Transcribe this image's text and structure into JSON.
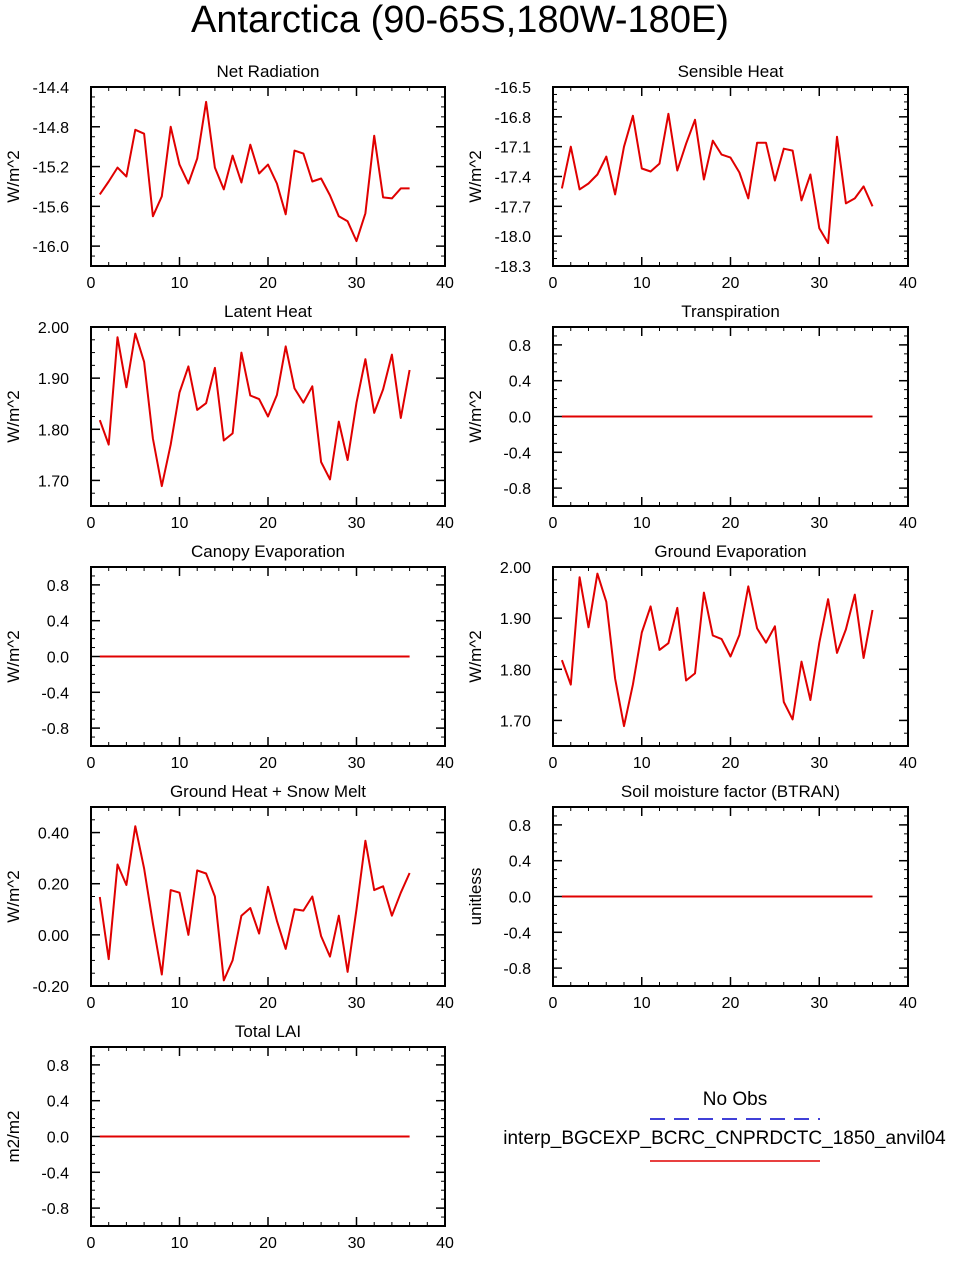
{
  "title": "Antarctica (90-65S,180W-180E)",
  "colors": {
    "case_line": "#e00000",
    "obs_line": "#0000cc",
    "axis": "#000000"
  },
  "legend": {
    "obs_label": "No Obs",
    "case_label": "interp_BGCEXP_BCRC_CNPRDCTC_1850_anvil04"
  },
  "chart_data": [
    {
      "type": "line",
      "title": "Net Radiation",
      "ylabel": "W/m^2",
      "xlim": [
        0,
        40
      ],
      "ylim": [
        -16.2,
        -14.4
      ],
      "xticks": [
        0,
        10,
        20,
        30,
        40
      ],
      "xtick_labels": [
        "0",
        "10",
        "20",
        "30",
        "40"
      ],
      "yticks": [
        -14.4,
        -14.8,
        -15.2,
        -15.6,
        -16.0
      ],
      "ytick_labels": [
        "-14.4",
        "-14.8",
        "-15.2",
        "-15.6",
        "-16.0"
      ],
      "x": [
        1,
        2,
        3,
        4,
        5,
        6,
        7,
        8,
        9,
        10,
        11,
        12,
        13,
        14,
        15,
        16,
        17,
        18,
        19,
        20,
        21,
        22,
        23,
        24,
        25,
        26,
        27,
        28,
        29,
        30,
        31,
        32,
        33,
        34,
        35,
        36
      ],
      "series": [
        {
          "name": "interp_BGCEXP_BCRC_CNPRDCTC_1850_anvil04",
          "values": [
            -15.48,
            -15.35,
            -15.21,
            -15.3,
            -14.83,
            -14.87,
            -15.7,
            -15.5,
            -14.8,
            -15.18,
            -15.37,
            -15.12,
            -14.55,
            -15.21,
            -15.43,
            -15.09,
            -15.36,
            -14.98,
            -15.27,
            -15.18,
            -15.37,
            -15.68,
            -15.04,
            -15.07,
            -15.35,
            -15.32,
            -15.49,
            -15.7,
            -15.75,
            -15.95,
            -15.67,
            -14.89,
            -15.51,
            -15.52,
            -15.42,
            -15.42
          ]
        }
      ]
    },
    {
      "type": "line",
      "title": "Sensible Heat",
      "ylabel": "W/m^2",
      "xlim": [
        0,
        40
      ],
      "ylim": [
        -18.3,
        -16.5
      ],
      "xticks": [
        0,
        10,
        20,
        30,
        40
      ],
      "xtick_labels": [
        "0",
        "10",
        "20",
        "30",
        "40"
      ],
      "yticks": [
        -16.5,
        -16.8,
        -17.1,
        -17.4,
        -17.7,
        -18.0,
        -18.3
      ],
      "ytick_labels": [
        "-16.5",
        "-16.8",
        "-17.1",
        "-17.4",
        "-17.7",
        "-18.0",
        "-18.3"
      ],
      "x": [
        1,
        2,
        3,
        4,
        5,
        6,
        7,
        8,
        9,
        10,
        11,
        12,
        13,
        14,
        15,
        16,
        17,
        18,
        19,
        20,
        21,
        22,
        23,
        24,
        25,
        26,
        27,
        28,
        29,
        30,
        31,
        32,
        33,
        34,
        35,
        36
      ],
      "series": [
        {
          "name": "interp_BGCEXP_BCRC_CNPRDCTC_1850_anvil04",
          "values": [
            -17.52,
            -17.1,
            -17.53,
            -17.47,
            -17.38,
            -17.2,
            -17.58,
            -17.1,
            -16.79,
            -17.32,
            -17.35,
            -17.27,
            -16.77,
            -17.34,
            -17.07,
            -16.83,
            -17.43,
            -17.04,
            -17.18,
            -17.21,
            -17.36,
            -17.62,
            -17.06,
            -17.06,
            -17.44,
            -17.12,
            -17.14,
            -17.64,
            -17.38,
            -17.92,
            -18.07,
            -17.0,
            -17.67,
            -17.62,
            -17.5,
            -17.7
          ]
        }
      ]
    },
    {
      "type": "line",
      "title": "Latent Heat",
      "ylabel": "W/m^2",
      "xlim": [
        0,
        40
      ],
      "ylim": [
        1.65,
        2.0
      ],
      "xticks": [
        0,
        10,
        20,
        30,
        40
      ],
      "xtick_labels": [
        "0",
        "10",
        "20",
        "30",
        "40"
      ],
      "yticks": [
        2.0,
        1.9,
        1.8,
        1.7
      ],
      "ytick_labels": [
        "2.00",
        "1.90",
        "1.80",
        "1.70"
      ],
      "x": [
        1,
        2,
        3,
        4,
        5,
        6,
        7,
        8,
        9,
        10,
        11,
        12,
        13,
        14,
        15,
        16,
        17,
        18,
        19,
        20,
        21,
        22,
        23,
        24,
        25,
        26,
        27,
        28,
        29,
        30,
        31,
        32,
        33,
        34,
        35,
        36
      ],
      "series": [
        {
          "name": "interp_BGCEXP_BCRC_CNPRDCTC_1850_anvil04",
          "values": [
            1.818,
            1.77,
            1.98,
            1.882,
            1.987,
            1.932,
            1.782,
            1.689,
            1.77,
            1.872,
            1.923,
            1.838,
            1.851,
            1.92,
            1.778,
            1.792,
            1.95,
            1.866,
            1.859,
            1.825,
            1.867,
            1.962,
            1.88,
            1.852,
            1.884,
            1.736,
            1.702,
            1.815,
            1.74,
            1.852,
            1.937,
            1.832,
            1.878,
            1.946,
            1.822,
            1.916
          ]
        }
      ]
    },
    {
      "type": "line",
      "title": "Transpiration",
      "ylabel": "W/m^2",
      "xlim": [
        0,
        40
      ],
      "ylim": [
        -1.0,
        1.0
      ],
      "xticks": [
        0,
        10,
        20,
        30,
        40
      ],
      "xtick_labels": [
        "0",
        "10",
        "20",
        "30",
        "40"
      ],
      "yticks": [
        0.8,
        0.4,
        0.0,
        -0.4,
        -0.8
      ],
      "ytick_labels": [
        "0.8",
        "0.4",
        "0.0",
        "-0.4",
        "-0.8"
      ],
      "x": [
        1,
        2,
        3,
        4,
        5,
        6,
        7,
        8,
        9,
        10,
        11,
        12,
        13,
        14,
        15,
        16,
        17,
        18,
        19,
        20,
        21,
        22,
        23,
        24,
        25,
        26,
        27,
        28,
        29,
        30,
        31,
        32,
        33,
        34,
        35,
        36
      ],
      "series": [
        {
          "name": "interp_BGCEXP_BCRC_CNPRDCTC_1850_anvil04",
          "values": [
            0,
            0,
            0,
            0,
            0,
            0,
            0,
            0,
            0,
            0,
            0,
            0,
            0,
            0,
            0,
            0,
            0,
            0,
            0,
            0,
            0,
            0,
            0,
            0,
            0,
            0,
            0,
            0,
            0,
            0,
            0,
            0,
            0,
            0,
            0,
            0
          ]
        }
      ]
    },
    {
      "type": "line",
      "title": "Canopy Evaporation",
      "ylabel": "W/m^2",
      "xlim": [
        0,
        40
      ],
      "ylim": [
        -1.0,
        1.0
      ],
      "xticks": [
        0,
        10,
        20,
        30,
        40
      ],
      "xtick_labels": [
        "0",
        "10",
        "20",
        "30",
        "40"
      ],
      "yticks": [
        0.8,
        0.4,
        0.0,
        -0.4,
        -0.8
      ],
      "ytick_labels": [
        "0.8",
        "0.4",
        "0.0",
        "-0.4",
        "-0.8"
      ],
      "x": [
        1,
        2,
        3,
        4,
        5,
        6,
        7,
        8,
        9,
        10,
        11,
        12,
        13,
        14,
        15,
        16,
        17,
        18,
        19,
        20,
        21,
        22,
        23,
        24,
        25,
        26,
        27,
        28,
        29,
        30,
        31,
        32,
        33,
        34,
        35,
        36
      ],
      "series": [
        {
          "name": "interp_BGCEXP_BCRC_CNPRDCTC_1850_anvil04",
          "values": [
            0,
            0,
            0,
            0,
            0,
            0,
            0,
            0,
            0,
            0,
            0,
            0,
            0,
            0,
            0,
            0,
            0,
            0,
            0,
            0,
            0,
            0,
            0,
            0,
            0,
            0,
            0,
            0,
            0,
            0,
            0,
            0,
            0,
            0,
            0,
            0
          ]
        }
      ]
    },
    {
      "type": "line",
      "title": "Ground Evaporation",
      "ylabel": "W/m^2",
      "xlim": [
        0,
        40
      ],
      "ylim": [
        1.65,
        2.0
      ],
      "xticks": [
        0,
        10,
        20,
        30,
        40
      ],
      "xtick_labels": [
        "0",
        "10",
        "20",
        "30",
        "40"
      ],
      "yticks": [
        2.0,
        1.9,
        1.8,
        1.7
      ],
      "ytick_labels": [
        "2.00",
        "1.90",
        "1.80",
        "1.70"
      ],
      "x": [
        1,
        2,
        3,
        4,
        5,
        6,
        7,
        8,
        9,
        10,
        11,
        12,
        13,
        14,
        15,
        16,
        17,
        18,
        19,
        20,
        21,
        22,
        23,
        24,
        25,
        26,
        27,
        28,
        29,
        30,
        31,
        32,
        33,
        34,
        35,
        36
      ],
      "series": [
        {
          "name": "interp_BGCEXP_BCRC_CNPRDCTC_1850_anvil04",
          "values": [
            1.818,
            1.77,
            1.98,
            1.882,
            1.987,
            1.932,
            1.782,
            1.689,
            1.77,
            1.872,
            1.923,
            1.838,
            1.851,
            1.92,
            1.778,
            1.792,
            1.95,
            1.866,
            1.859,
            1.825,
            1.867,
            1.962,
            1.88,
            1.852,
            1.884,
            1.736,
            1.702,
            1.815,
            1.74,
            1.852,
            1.937,
            1.832,
            1.878,
            1.946,
            1.822,
            1.916
          ]
        }
      ]
    },
    {
      "type": "line",
      "title": "Ground Heat + Snow Melt",
      "ylabel": "W/m^2",
      "xlim": [
        0,
        40
      ],
      "ylim": [
        -0.2,
        0.5
      ],
      "xticks": [
        0,
        10,
        20,
        30,
        40
      ],
      "xtick_labels": [
        "0",
        "10",
        "20",
        "30",
        "40"
      ],
      "yticks": [
        0.4,
        0.2,
        0.0,
        -0.2
      ],
      "ytick_labels": [
        "0.40",
        "0.20",
        "0.00",
        "-0.20"
      ],
      "x": [
        1,
        2,
        3,
        4,
        5,
        6,
        7,
        8,
        9,
        10,
        11,
        12,
        13,
        14,
        15,
        16,
        17,
        18,
        19,
        20,
        21,
        22,
        23,
        24,
        25,
        26,
        27,
        28,
        29,
        30,
        31,
        32,
        33,
        34,
        35,
        36
      ],
      "series": [
        {
          "name": "interp_BGCEXP_BCRC_CNPRDCTC_1850_anvil04",
          "values": [
            0.148,
            -0.095,
            0.275,
            0.195,
            0.425,
            0.26,
            0.045,
            -0.155,
            0.175,
            0.165,
            0.0,
            0.252,
            0.24,
            0.15,
            -0.178,
            -0.1,
            0.075,
            0.105,
            0.005,
            0.188,
            0.055,
            -0.055,
            0.1,
            0.095,
            0.15,
            -0.005,
            -0.085,
            0.075,
            -0.145,
            0.1,
            0.368,
            0.175,
            0.19,
            0.075,
            0.165,
            0.242
          ]
        }
      ]
    },
    {
      "type": "line",
      "title": "Soil moisture factor (BTRAN)",
      "ylabel": "unitless",
      "xlim": [
        0,
        40
      ],
      "ylim": [
        -1.0,
        1.0
      ],
      "xticks": [
        0,
        10,
        20,
        30,
        40
      ],
      "xtick_labels": [
        "0",
        "10",
        "20",
        "30",
        "40"
      ],
      "yticks": [
        0.8,
        0.4,
        0.0,
        -0.4,
        -0.8
      ],
      "ytick_labels": [
        "0.8",
        "0.4",
        "0.0",
        "-0.4",
        "-0.8"
      ],
      "x": [
        1,
        2,
        3,
        4,
        5,
        6,
        7,
        8,
        9,
        10,
        11,
        12,
        13,
        14,
        15,
        16,
        17,
        18,
        19,
        20,
        21,
        22,
        23,
        24,
        25,
        26,
        27,
        28,
        29,
        30,
        31,
        32,
        33,
        34,
        35,
        36
      ],
      "series": [
        {
          "name": "interp_BGCEXP_BCRC_CNPRDCTC_1850_anvil04",
          "values": [
            0,
            0,
            0,
            0,
            0,
            0,
            0,
            0,
            0,
            0,
            0,
            0,
            0,
            0,
            0,
            0,
            0,
            0,
            0,
            0,
            0,
            0,
            0,
            0,
            0,
            0,
            0,
            0,
            0,
            0,
            0,
            0,
            0,
            0,
            0,
            0
          ]
        }
      ]
    },
    {
      "type": "line",
      "title": "Total LAI",
      "ylabel": "m2/m2",
      "xlim": [
        0,
        40
      ],
      "ylim": [
        -1.0,
        1.0
      ],
      "xticks": [
        0,
        10,
        20,
        30,
        40
      ],
      "xtick_labels": [
        "0",
        "10",
        "20",
        "30",
        "40"
      ],
      "yticks": [
        0.8,
        0.4,
        0.0,
        -0.4,
        -0.8
      ],
      "ytick_labels": [
        "0.8",
        "0.4",
        "0.0",
        "-0.4",
        "-0.8"
      ],
      "x": [
        1,
        2,
        3,
        4,
        5,
        6,
        7,
        8,
        9,
        10,
        11,
        12,
        13,
        14,
        15,
        16,
        17,
        18,
        19,
        20,
        21,
        22,
        23,
        24,
        25,
        26,
        27,
        28,
        29,
        30,
        31,
        32,
        33,
        34,
        35,
        36
      ],
      "series": [
        {
          "name": "interp_BGCEXP_BCRC_CNPRDCTC_1850_anvil04",
          "values": [
            0,
            0,
            0,
            0,
            0,
            0,
            0,
            0,
            0,
            0,
            0,
            0,
            0,
            0,
            0,
            0,
            0,
            0,
            0,
            0,
            0,
            0,
            0,
            0,
            0,
            0,
            0,
            0,
            0,
            0,
            0,
            0,
            0,
            0,
            0,
            0
          ]
        }
      ]
    }
  ]
}
